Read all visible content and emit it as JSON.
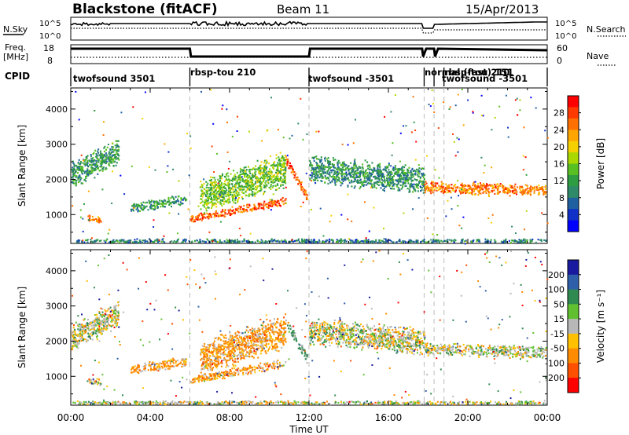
{
  "header": {
    "station": "Blackstone (fitACF)",
    "beam": "Beam 11",
    "date": "15/Apr/2013"
  },
  "strip_labels": {
    "nsky": "N.Sky",
    "nsearch": "N.Search",
    "freq": "Freq.",
    "freq_unit": "[MHz]",
    "nave": "Nave",
    "cpid": "CPID",
    "noise_ticks_left": [
      "10^5",
      "10^0"
    ],
    "noise_ticks_right": [
      "10^5",
      "10^0"
    ],
    "freq_ticks": [
      "18",
      "8"
    ],
    "nave_ticks": [
      "60",
      "0"
    ]
  },
  "cpid_segments": [
    {
      "label": "twofsound 3501",
      "start": 0.0,
      "end": 6.0
    },
    {
      "label": "rbsp-tou 210",
      "start": 6.0,
      "end": 12.0
    },
    {
      "label": "twofsound -3501",
      "start": 12.0,
      "end": 17.8
    },
    {
      "label": "normal (fast) 151",
      "start": 17.8,
      "end": 18.3
    },
    {
      "label": "rbsp-tou 210",
      "start": 18.3,
      "end": 18.8
    },
    {
      "label": "twofsound -3501",
      "start": 18.8,
      "end": 24.0
    }
  ],
  "colorbars": {
    "power": {
      "label": "Power [dB]",
      "ticks": [
        "28",
        "24",
        "20",
        "16",
        "12",
        "8",
        "4"
      ],
      "colors": [
        "#ff0000",
        "#ff3a00",
        "#ff7000",
        "#ffa500",
        "#f5d000",
        "#a8d800",
        "#58c020",
        "#2e9c40",
        "#2f8a6a",
        "#2060a0",
        "#1030c8",
        "#0000ff"
      ]
    },
    "velocity": {
      "label": "Velocity [m s⁻¹]",
      "ticks": [
        "200",
        "100",
        "50",
        "15",
        "-15",
        "-50",
        "-100",
        "-200"
      ],
      "colors": [
        "#1a1aa0",
        "#2e5fa8",
        "#2e8a50",
        "#60c030",
        "#b8b8b8",
        "#ffc000",
        "#ff8c00",
        "#ff5000",
        "#ff0000"
      ]
    }
  },
  "chart_data": [
    {
      "type": "heatmap",
      "title": "Power",
      "xlabel": "",
      "ylabel": "Slant Range [km]",
      "xlim": [
        0,
        24
      ],
      "ylim": [
        180,
        4600
      ],
      "x_ticks": [
        "00:00",
        "04:00",
        "08:00",
        "12:00",
        "16:00",
        "20:00",
        "00:00"
      ],
      "y_ticks": [
        1000,
        2000,
        3000,
        4000
      ],
      "value_unit": "dB",
      "scatter_bands": [
        {
          "t0": 0.0,
          "t1": 2.4,
          "r_center": [
            2100,
            2800
          ],
          "r_width": 700,
          "value": 10
        },
        {
          "t0": 0.8,
          "t1": 1.5,
          "r_center": [
            900,
            850
          ],
          "r_width": 180,
          "value": 24
        },
        {
          "t0": 3.0,
          "t1": 5.8,
          "r_center": [
            1200,
            1450
          ],
          "r_width": 260,
          "value": 10
        },
        {
          "t0": 6.0,
          "t1": 10.8,
          "r_center": [
            900,
            1400
          ],
          "r_width": 220,
          "value": 26
        },
        {
          "t0": 6.5,
          "t1": 10.8,
          "r_center": [
            1500,
            2300
          ],
          "r_width": 900,
          "value": 14
        },
        {
          "t0": 10.8,
          "t1": 11.9,
          "r_center": [
            2600,
            1500
          ],
          "r_width": 260,
          "value": 26
        },
        {
          "t0": 12.0,
          "t1": 17.8,
          "r_center": [
            2300,
            2000
          ],
          "r_width": 700,
          "value": 9
        },
        {
          "t0": 17.8,
          "t1": 24.0,
          "r_center": [
            1800,
            1700
          ],
          "r_width": 320,
          "value": 24
        },
        {
          "t0": 0.0,
          "t1": 24.0,
          "r_center": [
            260,
            260
          ],
          "r_width": 120,
          "value": 8
        }
      ]
    },
    {
      "type": "heatmap",
      "title": "Velocity",
      "xlabel": "Time UT",
      "ylabel": "Slant Range [km]",
      "xlim": [
        0,
        24
      ],
      "ylim": [
        180,
        4600
      ],
      "x_ticks": [
        "00:00",
        "04:00",
        "08:00",
        "12:00",
        "16:00",
        "20:00",
        "00:00"
      ],
      "y_ticks": [
        1000,
        2000,
        3000,
        4000
      ],
      "value_unit": "m s-1",
      "scatter_bands": [
        {
          "t0": 0.0,
          "t1": 2.4,
          "r_center": [
            2100,
            2800
          ],
          "r_width": 700,
          "value": 0
        },
        {
          "t0": 0.8,
          "t1": 1.5,
          "r_center": [
            900,
            850
          ],
          "r_width": 180,
          "value": 0
        },
        {
          "t0": 3.0,
          "t1": 5.8,
          "r_center": [
            1200,
            1450
          ],
          "r_width": 260,
          "value": -40
        },
        {
          "t0": 6.0,
          "t1": 10.8,
          "r_center": [
            900,
            1400
          ],
          "r_width": 220,
          "value": -40
        },
        {
          "t0": 6.5,
          "t1": 10.8,
          "r_center": [
            1500,
            2300
          ],
          "r_width": 900,
          "value": -40
        },
        {
          "t0": 10.8,
          "t1": 11.9,
          "r_center": [
            2600,
            1500
          ],
          "r_width": 260,
          "value": 30
        },
        {
          "t0": 12.0,
          "t1": 17.8,
          "r_center": [
            2300,
            2000
          ],
          "r_width": 700,
          "value": 0
        },
        {
          "t0": 17.8,
          "t1": 24.0,
          "r_center": [
            1800,
            1700
          ],
          "r_width": 320,
          "value": 0
        },
        {
          "t0": 0.0,
          "t1": 24.0,
          "r_center": [
            260,
            260
          ],
          "r_width": 120,
          "value": 0
        }
      ]
    }
  ]
}
